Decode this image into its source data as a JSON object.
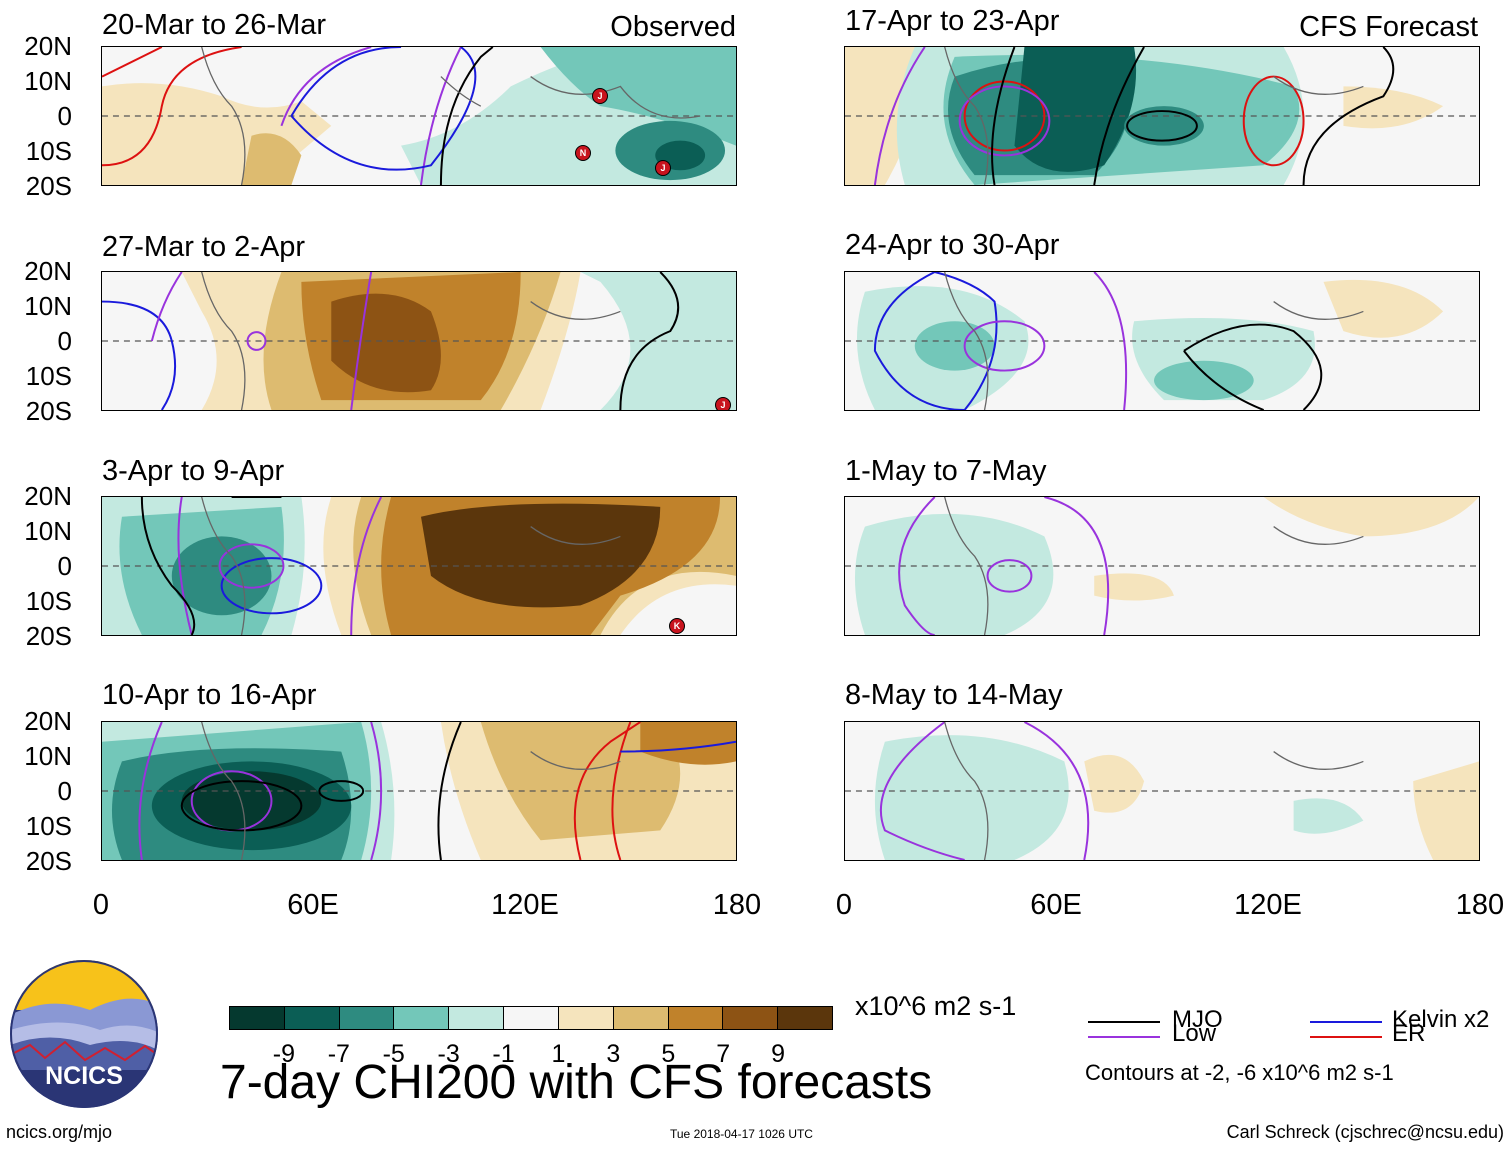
{
  "figure_title": "7-day CHI200 with CFS forecasts",
  "units": "x10^6 m2 s-1",
  "observed_label": "Observed",
  "forecast_label": "CFS Forecast",
  "panels_observed": [
    {
      "title": "20-Mar to 26-Mar"
    },
    {
      "title": "27-Mar to 2-Apr"
    },
    {
      "title": "3-Apr to 9-Apr"
    },
    {
      "title": "10-Apr to 16-Apr"
    }
  ],
  "panels_forecast": [
    {
      "title": "17-Apr to 23-Apr"
    },
    {
      "title": "24-Apr to 30-Apr"
    },
    {
      "title": "1-May to 7-May"
    },
    {
      "title": "8-May to 14-May"
    }
  ],
  "lat_labels": [
    "20N",
    "10N",
    "0",
    "10S",
    "20S"
  ],
  "lon_labels": [
    "0",
    "60E",
    "120E",
    "180"
  ],
  "colorbar": {
    "colors": [
      "#05392f",
      "#0b5e55",
      "#2e8b80",
      "#73c7b9",
      "#c3e9e0",
      "#f6f6f6",
      "#f5e4bd",
      "#ddbb70",
      "#c0822b",
      "#8d5314",
      "#5b360c"
    ],
    "labels": [
      "-9",
      "-7",
      "-5",
      "-3",
      "-1",
      "1",
      "3",
      "5",
      "7",
      "9"
    ]
  },
  "legend": {
    "mjo": {
      "label": "MJO",
      "color": "#000000"
    },
    "kelvin": {
      "label": "Kelvin x2",
      "color": "#1a1adc"
    },
    "low": {
      "label": "Low",
      "color": "#9933dd"
    },
    "er": {
      "label": "ER",
      "color": "#dd1111"
    },
    "contours_note": "Contours at -2, -6 x10^6 m2 s-1"
  },
  "logo_text": "NCICS",
  "footer": {
    "left": "ncics.org/mjo",
    "center": "Tue 2018-04-17 1026 UTC",
    "right": "Carl Schreck (cjschrec@ncsu.edu)"
  },
  "cyclone_markers": [
    "J",
    "N",
    "J",
    "J",
    "K"
  ]
}
